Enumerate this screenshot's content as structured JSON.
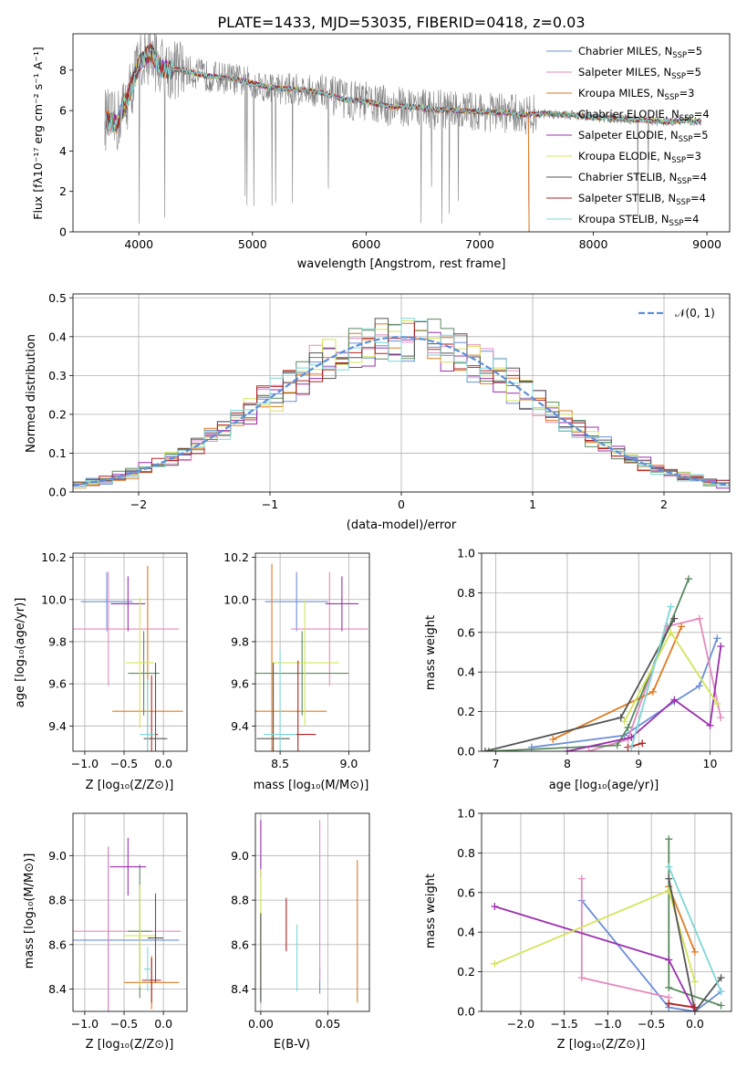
{
  "colors": {
    "chabrier_miles": "#6b8fd8",
    "salpeter_miles": "#e58bbd",
    "kroupa_miles": "#e07b22",
    "chabrier_elodie": "#5a8a5e",
    "salpeter_elodie": "#9b2fae",
    "kroupa_elodie": "#d4e45a",
    "chabrier_stelib": "#555555",
    "salpeter_stelib": "#b22222",
    "kroupa_stelib": "#7fd6d6",
    "gaussian": "#5b8fd8",
    "grey_spectrum": "#808080"
  },
  "chart_data": [
    {
      "id": "spectrum",
      "type": "line",
      "title": "PLATE=1433, MJD=53035, FIBERID=0418, z=0.03",
      "xlabel": "wavelength [Angstrom, rest frame]",
      "ylabel": "Flux [fλ10⁻¹⁷ erg cm⁻² s⁻¹ A⁻¹]",
      "xlim": [
        3420,
        9200
      ],
      "ylim": [
        0,
        9.8
      ],
      "xticks": [
        4000,
        5000,
        6000,
        7000,
        8000,
        9000
      ],
      "yticks": [
        0,
        2,
        4,
        6,
        8
      ],
      "legend": [
        {
          "label": "Chabrier MILES, N",
          "sub": "SSP",
          "suffix": "=5",
          "color_key": "chabrier_miles"
        },
        {
          "label": "Salpeter MILES, N",
          "sub": "SSP",
          "suffix": "=5",
          "color_key": "salpeter_miles"
        },
        {
          "label": "Kroupa MILES, N",
          "sub": "SSP",
          "suffix": "=3",
          "color_key": "kroupa_miles"
        },
        {
          "label": "Chabrier ELODIE, N",
          "sub": "SSP",
          "suffix": "=4",
          "color_key": "chabrier_elodie"
        },
        {
          "label": "Salpeter ELODIE, N",
          "sub": "SSP",
          "suffix": "=5",
          "color_key": "salpeter_elodie"
        },
        {
          "label": "Kroupa ELODIE, N",
          "sub": "SSP",
          "suffix": "=3",
          "color_key": "kroupa_elodie"
        },
        {
          "label": "Chabrier STELIB, N",
          "sub": "SSP",
          "suffix": "=4",
          "color_key": "chabrier_stelib"
        },
        {
          "label": "Salpeter STELIB, N",
          "sub": "SSP",
          "suffix": "=4",
          "color_key": "salpeter_stelib"
        },
        {
          "label": "Kroupa STELIB, N",
          "sub": "SSP",
          "suffix": "=4",
          "color_key": "kroupa_stelib"
        }
      ],
      "continuum": [
        [
          3700,
          5.6
        ],
        [
          3800,
          5.3
        ],
        [
          3900,
          6.6
        ],
        [
          4000,
          8.3
        ],
        [
          4100,
          8.9
        ],
        [
          4200,
          8.1
        ],
        [
          4400,
          8.0
        ],
        [
          4600,
          7.7
        ],
        [
          4800,
          7.6
        ],
        [
          5000,
          7.35
        ],
        [
          5200,
          7.1
        ],
        [
          5400,
          7.05
        ],
        [
          5600,
          6.9
        ],
        [
          5800,
          6.55
        ],
        [
          6000,
          6.45
        ],
        [
          6200,
          6.2
        ],
        [
          6400,
          6.2
        ],
        [
          6600,
          6.05
        ],
        [
          6800,
          6.0
        ],
        [
          7000,
          5.95
        ],
        [
          7200,
          5.9
        ],
        [
          7400,
          5.8
        ],
        [
          7600,
          5.85
        ],
        [
          7800,
          5.8
        ],
        [
          8000,
          5.65
        ],
        [
          8200,
          5.6
        ],
        [
          8400,
          5.55
        ],
        [
          8600,
          5.45
        ],
        [
          8800,
          5.5
        ],
        [
          9000,
          5.45
        ]
      ],
      "notes": "grey observed spectrum is noisy around the model continuum; model fits end near 7430 A for MILES"
    },
    {
      "id": "residuals",
      "type": "bar",
      "xlabel": "(data-model)/error",
      "ylabel": "Normed distribution",
      "xlim": [
        -2.5,
        2.5
      ],
      "ylim": [
        0,
        0.51
      ],
      "xticks": [
        -2,
        -1,
        0,
        1,
        2
      ],
      "yticks": [
        0.0,
        0.1,
        0.2,
        0.3,
        0.4,
        0.5
      ],
      "legend": [
        {
          "label": "𝒩(0, 1)",
          "color_key": "gaussian",
          "style": "dashed"
        }
      ],
      "bin_width": 0.1
    },
    {
      "id": "age_vs_Z",
      "type": "scatter",
      "xlabel": "Z [log₁₀(Z/Z⊙)]",
      "ylabel": "age  [log₁₀(age/yr)]",
      "xlim": [
        -1.15,
        0.3
      ],
      "ylim": [
        9.28,
        10.22
      ],
      "xticks": [
        -1.0,
        -0.5,
        0.0
      ],
      "yticks": [
        9.4,
        9.6,
        9.8,
        10.0,
        10.2
      ],
      "points": [
        {
          "color_key": "chabrier_miles",
          "x": -0.72,
          "xerr": 0.33,
          "y": 9.99,
          "yerr": 0.14
        },
        {
          "color_key": "salpeter_miles",
          "x": -0.7,
          "xerr": 0.9,
          "y": 9.86,
          "yerr": 0.27
        },
        {
          "color_key": "kroupa_miles",
          "x": -0.2,
          "xerr": 0.45,
          "y": 9.47,
          "yerr": 0.69
        },
        {
          "color_key": "chabrier_elodie",
          "x": -0.25,
          "xerr": 0.2,
          "y": 9.65,
          "yerr": 0.2
        },
        {
          "color_key": "salpeter_elodie",
          "x": -0.45,
          "xerr": 0.22,
          "y": 9.98,
          "yerr": 0.13
        },
        {
          "color_key": "kroupa_elodie",
          "x": -0.3,
          "xerr": 0.18,
          "y": 9.7,
          "yerr": 0.31
        },
        {
          "color_key": "chabrier_stelib",
          "x": -0.1,
          "xerr": 0.15,
          "y": 9.34,
          "yerr": 0.36
        },
        {
          "color_key": "salpeter_stelib",
          "x": -0.15,
          "xerr": 0.08,
          "y": 9.36,
          "yerr": 0.28
        },
        {
          "color_key": "kroupa_stelib",
          "x": -0.2,
          "xerr": 0.1,
          "y": 9.36,
          "yerr": 0.26
        }
      ]
    },
    {
      "id": "age_vs_mass",
      "type": "scatter",
      "xlabel": "mass [log₁₀(M/M⊙)]",
      "ylabel": "",
      "xlim": [
        8.32,
        9.15
      ],
      "ylim": [
        9.28,
        10.22
      ],
      "xticks": [
        8.5,
        9.0
      ],
      "yticks": [
        9.4,
        9.6,
        9.8,
        10.0,
        10.2
      ],
      "points": [
        {
          "color_key": "chabrier_miles",
          "x": 8.62,
          "xerr": 0.23,
          "y": 9.99,
          "yerr": 0.14
        },
        {
          "color_key": "salpeter_miles",
          "x": 8.86,
          "xerr": 0.28,
          "y": 9.86,
          "yerr": 0.27
        },
        {
          "color_key": "kroupa_miles",
          "x": 8.44,
          "xerr": 0.4,
          "y": 9.47,
          "yerr": 0.7
        },
        {
          "color_key": "chabrier_elodie",
          "x": 8.66,
          "xerr": 0.34,
          "y": 9.65,
          "yerr": 0.2
        },
        {
          "color_key": "salpeter_elodie",
          "x": 8.95,
          "xerr": 0.12,
          "y": 9.98,
          "yerr": 0.13
        },
        {
          "color_key": "kroupa_elodie",
          "x": 8.68,
          "xerr": 0.25,
          "y": 9.7,
          "yerr": 0.3
        },
        {
          "color_key": "chabrier_stelib",
          "x": 8.45,
          "xerr": 0.12,
          "y": 9.34,
          "yerr": 0.36
        },
        {
          "color_key": "salpeter_stelib",
          "x": 8.63,
          "xerr": 0.13,
          "y": 9.36,
          "yerr": 0.35
        },
        {
          "color_key": "kroupa_stelib",
          "x": 8.5,
          "xerr": 0.12,
          "y": 9.36,
          "yerr": 0.4
        }
      ]
    },
    {
      "id": "mass_weight_vs_age",
      "type": "line",
      "xlabel": "age  [log₁₀(age/yr)]",
      "ylabel": "mass weight",
      "xlim": [
        6.8,
        10.3
      ],
      "ylim": [
        0.0,
        1.0
      ],
      "xticks": [
        7,
        8,
        9,
        10
      ],
      "yticks": [
        0.0,
        0.2,
        0.4,
        0.6,
        0.8,
        1.0
      ],
      "series": [
        {
          "color_key": "chabrier_miles",
          "x": [
            7.5,
            8.8,
            9.5,
            9.85,
            10.1
          ],
          "y": [
            0.02,
            0.08,
            0.25,
            0.33,
            0.57
          ]
        },
        {
          "color_key": "salpeter_miles",
          "x": [
            8.3,
            8.85,
            9.4,
            9.85,
            10.15
          ],
          "y": [
            0.0,
            0.06,
            0.63,
            0.67,
            0.17
          ]
        },
        {
          "color_key": "kroupa_miles",
          "x": [
            7.8,
            9.2,
            9.6
          ],
          "y": [
            0.06,
            0.3,
            0.63
          ]
        },
        {
          "color_key": "chabrier_elodie",
          "x": [
            6.9,
            8.7,
            8.85,
            9.7
          ],
          "y": [
            0.0,
            0.03,
            0.12,
            0.87
          ]
        },
        {
          "color_key": "salpeter_elodie",
          "x": [
            8.0,
            8.9,
            9.5,
            10.0,
            10.15
          ],
          "y": [
            0.0,
            0.07,
            0.26,
            0.13,
            0.53
          ]
        },
        {
          "color_key": "kroupa_elodie",
          "x": [
            8.8,
            9.45,
            10.1
          ],
          "y": [
            0.15,
            0.6,
            0.24
          ]
        },
        {
          "color_key": "chabrier_stelib",
          "x": [
            6.85,
            8.75,
            9.5
          ],
          "y": [
            0.0,
            0.17,
            0.67
          ]
        },
        {
          "color_key": "salpeter_stelib",
          "x": [
            8.85,
            9.05
          ],
          "y": [
            0.02,
            0.04
          ]
        },
        {
          "color_key": "kroupa_stelib",
          "x": [
            8.9,
            9.45
          ],
          "y": [
            0.02,
            0.73
          ]
        }
      ]
    },
    {
      "id": "mass_vs_Z",
      "type": "scatter",
      "xlabel": "Z [log₁₀(Z/Z⊙)]",
      "ylabel": "mass [log₁₀(M/M⊙)]",
      "xlim": [
        -1.15,
        0.3
      ],
      "ylim": [
        8.3,
        9.19
      ],
      "xticks": [
        -1.0,
        -0.5,
        0.0
      ],
      "yticks": [
        8.4,
        8.6,
        8.8,
        9.0
      ],
      "points": [
        {
          "color_key": "chabrier_miles",
          "x": -0.7,
          "xerr": 0.9,
          "y": 8.62,
          "yerr": 0.42
        },
        {
          "color_key": "salpeter_miles",
          "x": -0.7,
          "xerr": 0.92,
          "y": 8.66,
          "yerr": 0.38
        },
        {
          "color_key": "kroupa_miles",
          "x": -0.15,
          "xerr": 0.35,
          "y": 8.43,
          "yerr": 0.12
        },
        {
          "color_key": "chabrier_elodie",
          "x": -0.3,
          "xerr": 0.15,
          "y": 8.66,
          "yerr": 0.3
        },
        {
          "color_key": "salpeter_elodie",
          "x": -0.45,
          "xerr": 0.23,
          "y": 8.95,
          "yerr": 0.13
        },
        {
          "color_key": "kroupa_elodie",
          "x": -0.3,
          "xerr": 0.2,
          "y": 8.64,
          "yerr": 0.23
        },
        {
          "color_key": "chabrier_stelib",
          "x": -0.1,
          "xerr": 0.1,
          "y": 8.63,
          "yerr": 0.2
        },
        {
          "color_key": "salpeter_stelib",
          "x": -0.15,
          "xerr": 0.12,
          "y": 8.44,
          "yerr": 0.1
        },
        {
          "color_key": "kroupa_stelib",
          "x": -0.2,
          "xerr": 0.05,
          "y": 8.49,
          "yerr": 0.1
        }
      ]
    },
    {
      "id": "mass_vs_ebv",
      "type": "scatter",
      "xlabel": "E(B-V)",
      "ylabel": "",
      "xlim": [
        -0.004,
        0.081
      ],
      "ylim": [
        8.3,
        9.19
      ],
      "xticks": [
        0.0,
        0.05
      ],
      "xtick_labels": [
        "0.00",
        "0.05"
      ],
      "yticks": [
        8.4,
        8.6,
        8.8,
        9.0
      ],
      "points": [
        {
          "color_key": "chabrier_miles",
          "x": 0.044,
          "y": 8.44,
          "yerr": 0.06
        },
        {
          "color_key": "salpeter_miles",
          "x": 0.044,
          "y": 8.8,
          "yerr": 0.36
        },
        {
          "color_key": "kroupa_miles",
          "x": 0.072,
          "y": 8.66,
          "yerr": 0.32
        },
        {
          "color_key": "chabrier_elodie",
          "x": 0.0,
          "y": 8.55,
          "yerr": 0.2
        },
        {
          "color_key": "salpeter_elodie",
          "x": 0.0,
          "y": 9.03,
          "yerr": 0.13
        },
        {
          "color_key": "kroupa_elodie",
          "x": 0.0,
          "y": 8.68,
          "yerr": 0.26
        },
        {
          "color_key": "chabrier_stelib",
          "x": 0.0,
          "y": 8.54,
          "yerr": 0.2
        },
        {
          "color_key": "salpeter_stelib",
          "x": 0.019,
          "y": 8.69,
          "yerr": 0.12
        },
        {
          "color_key": "kroupa_stelib",
          "x": 0.027,
          "y": 8.54,
          "yerr": 0.15
        }
      ]
    },
    {
      "id": "mass_weight_vs_Z",
      "type": "line",
      "xlabel": "Z [log₁₀(Z/Z⊙)]",
      "ylabel": "mass weight",
      "xlim": [
        -2.45,
        0.42
      ],
      "ylim": [
        0.0,
        1.0
      ],
      "xticks": [
        -2.0,
        -1.5,
        -1.0,
        -0.5,
        0.0
      ],
      "yticks": [
        0.0,
        0.2,
        0.4,
        0.6,
        0.8,
        1.0
      ],
      "series": [
        {
          "color_key": "chabrier_miles",
          "x": [
            -1.3,
            -0.3,
            0.0,
            0.3
          ],
          "y": [
            0.56,
            0.02,
            0.0,
            0.1
          ]
        },
        {
          "color_key": "salpeter_miles",
          "x": [
            -1.3,
            -1.3,
            -0.3
          ],
          "y": [
            0.67,
            0.17,
            0.07
          ]
        },
        {
          "color_key": "kroupa_miles",
          "x": [
            -0.3,
            0.0
          ],
          "y": [
            0.63,
            0.3
          ]
        },
        {
          "color_key": "chabrier_elodie",
          "x": [
            -0.3,
            -0.3,
            0.3
          ],
          "y": [
            0.87,
            0.12,
            0.03
          ]
        },
        {
          "color_key": "salpeter_elodie",
          "x": [
            -2.3,
            -0.3,
            0.0
          ],
          "y": [
            0.53,
            0.26,
            0.0
          ]
        },
        {
          "color_key": "kroupa_elodie",
          "x": [
            -2.3,
            -0.3,
            0.0
          ],
          "y": [
            0.24,
            0.61,
            0.15
          ]
        },
        {
          "color_key": "chabrier_stelib",
          "x": [
            -0.3,
            0.0,
            0.3
          ],
          "y": [
            0.67,
            0.0,
            0.17
          ]
        },
        {
          "color_key": "salpeter_stelib",
          "x": [
            -0.3,
            0.0
          ],
          "y": [
            0.04,
            0.02
          ]
        },
        {
          "color_key": "kroupa_stelib",
          "x": [
            -0.3,
            0.3
          ],
          "y": [
            0.73,
            0.1
          ]
        }
      ]
    }
  ]
}
